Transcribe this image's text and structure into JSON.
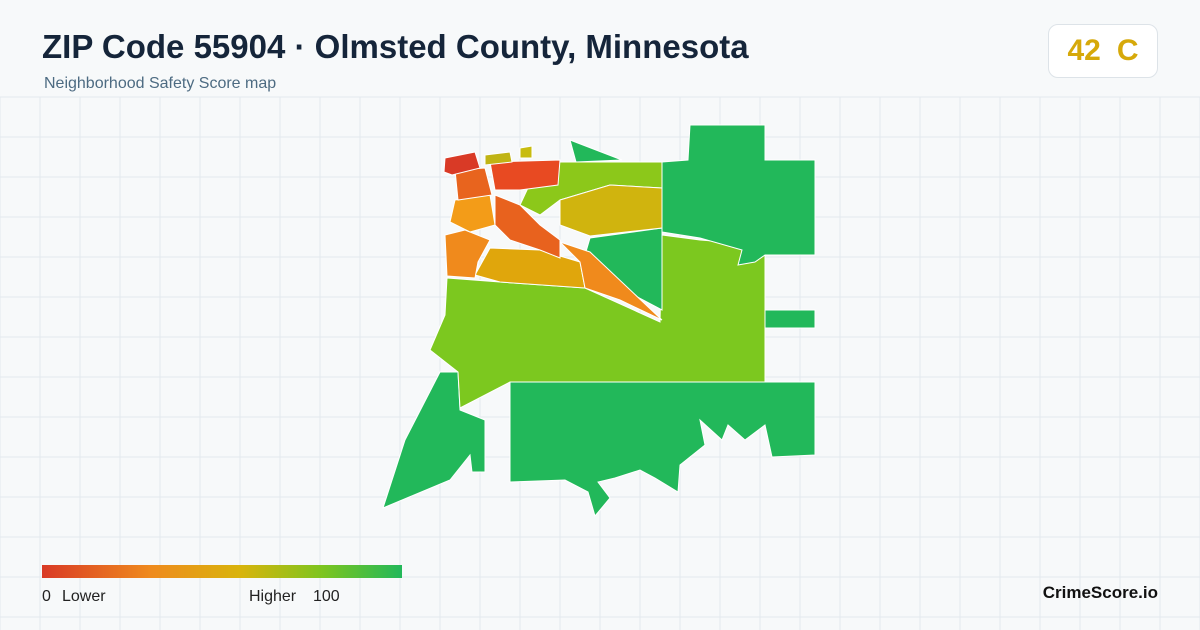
{
  "header": {
    "title": "ZIP Code 55904 · Olmsted County, Minnesota",
    "subtitle": "Neighborhood Safety Score map"
  },
  "score": {
    "value": 42,
    "grade": "C"
  },
  "legend": {
    "min": 0,
    "min_label": "Lower",
    "max_label": "Higher",
    "max": 100
  },
  "brand": "CrimeScore.io"
}
